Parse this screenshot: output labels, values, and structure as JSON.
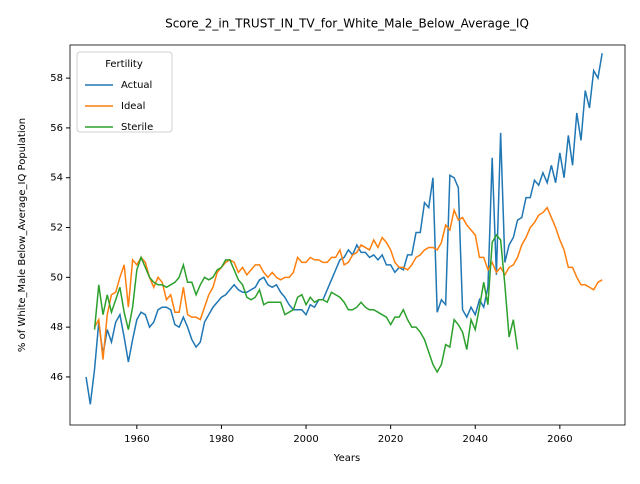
{
  "chart_data": {
    "type": "line",
    "title": "Score_2_in_TRUST_IN_TV_for_White_Male_Below_Average_IQ",
    "xlabel": "Years",
    "ylabel": "% of White_Male Below_Average_IQ Population",
    "legend_title": "Fertility",
    "legend": "upper left",
    "grid": false,
    "x": [
      1948,
      1949,
      1950,
      1951,
      1952,
      1953,
      1954,
      1955,
      1956,
      1957,
      1958,
      1959,
      1960,
      1961,
      1962,
      1963,
      1964,
      1965,
      1966,
      1967,
      1968,
      1969,
      1970,
      1971,
      1972,
      1973,
      1974,
      1975,
      1976,
      1977,
      1978,
      1979,
      1980,
      1981,
      1982,
      1983,
      1984,
      1985,
      1986,
      1987,
      1988,
      1989,
      1990,
      1991,
      1992,
      1993,
      1994,
      1995,
      1996,
      1997,
      1998,
      1999,
      2000,
      2001,
      2002,
      2003,
      2004,
      2005,
      2006,
      2007,
      2008,
      2009,
      2010,
      2011,
      2012,
      2013,
      2014,
      2015,
      2016,
      2017,
      2018,
      2019,
      2020,
      2021,
      2022,
      2023,
      2024,
      2025,
      2026,
      2027,
      2028,
      2029,
      2030,
      2031,
      2032,
      2033,
      2034,
      2035,
      2036,
      2037,
      2038,
      2039,
      2040,
      2041,
      2042,
      2043,
      2044,
      2045,
      2046,
      2047,
      2048,
      2049,
      2050,
      2051,
      2052,
      2053,
      2054,
      2055,
      2056,
      2057,
      2058,
      2059,
      2060,
      2061,
      2062,
      2063,
      2064,
      2065,
      2066,
      2067,
      2068,
      2069,
      2070
    ],
    "series": [
      {
        "name": "Actual",
        "color": "#1f77b4",
        "values": [
          46.0,
          44.9,
          46.3,
          48.2,
          46.9,
          47.9,
          47.4,
          48.2,
          48.5,
          47.6,
          46.6,
          47.5,
          48.3,
          48.6,
          48.5,
          48.0,
          48.2,
          48.7,
          48.8,
          48.8,
          48.7,
          48.1,
          48.0,
          48.4,
          48.0,
          47.5,
          47.2,
          47.4,
          48.2,
          48.5,
          48.8,
          49.0,
          49.2,
          49.3,
          49.5,
          49.7,
          49.5,
          49.4,
          49.4,
          49.5,
          49.6,
          49.9,
          50.0,
          49.7,
          49.6,
          49.7,
          49.4,
          49.2,
          48.9,
          48.7,
          48.7,
          48.7,
          48.5,
          48.9,
          48.8,
          49.1,
          49.1,
          49.5,
          49.9,
          50.3,
          50.7,
          50.8,
          51.1,
          50.9,
          51.3,
          51.0,
          51.0,
          50.8,
          50.9,
          50.7,
          50.9,
          50.5,
          50.5,
          50.2,
          50.4,
          50.3,
          50.9,
          50.9,
          51.8,
          51.8,
          53.0,
          52.8,
          54.0,
          48.6,
          49.1,
          48.9,
          54.1,
          54.0,
          53.6,
          48.7,
          48.4,
          48.8,
          48.5,
          49.1,
          48.8,
          49.6,
          54.8,
          50.1,
          55.8,
          50.6,
          51.3,
          51.6,
          52.3,
          52.4,
          53.2,
          53.2,
          53.9,
          53.7,
          54.2,
          53.8,
          54.5,
          53.8,
          55.0,
          54.0,
          55.7,
          54.5,
          56.6,
          55.5,
          57.5,
          56.8,
          58.3,
          58.0,
          59.0
        ]
      },
      {
        "name": "Ideal",
        "color": "#ff7f0e",
        "values": [
          null,
          null,
          48.0,
          48.3,
          46.7,
          48.5,
          49.3,
          49.4,
          50.0,
          50.5,
          48.8,
          50.7,
          50.5,
          50.8,
          50.6,
          50.0,
          49.6,
          50.0,
          49.8,
          49.1,
          49.3,
          48.6,
          48.6,
          49.6,
          48.5,
          48.4,
          48.4,
          48.3,
          48.8,
          49.3,
          49.6,
          50.2,
          50.4,
          50.6,
          50.7,
          50.6,
          50.2,
          50.4,
          50.1,
          50.3,
          50.5,
          50.5,
          50.2,
          50.0,
          50.2,
          50.0,
          49.9,
          50.0,
          50.0,
          50.2,
          50.8,
          50.6,
          50.6,
          50.8,
          50.7,
          50.7,
          50.6,
          50.6,
          50.8,
          50.8,
          51.1,
          50.5,
          50.6,
          50.9,
          51.0,
          51.3,
          51.2,
          51.1,
          51.5,
          51.2,
          51.6,
          51.4,
          51.1,
          50.6,
          50.4,
          50.4,
          50.3,
          50.5,
          50.8,
          50.9,
          51.1,
          51.2,
          51.2,
          51.1,
          51.4,
          52.1,
          51.9,
          52.7,
          52.3,
          52.4,
          52.1,
          51.9,
          51.7,
          50.8,
          50.8,
          50.3,
          50.6,
          50.2,
          50.4,
          50.1,
          50.4,
          50.5,
          50.8,
          51.3,
          51.6,
          52.0,
          52.2,
          52.5,
          52.6,
          52.8,
          52.4,
          52.0,
          51.5,
          51.1,
          50.4,
          50.4,
          50.0,
          49.7,
          49.7,
          49.6,
          49.5,
          49.8,
          49.9
        ]
      },
      {
        "name": "Sterile",
        "color": "#2ca02c",
        "values": [
          null,
          null,
          47.9,
          49.7,
          48.5,
          49.3,
          48.6,
          49.1,
          49.6,
          48.6,
          47.9,
          48.8,
          50.3,
          50.8,
          50.4,
          50.0,
          49.8,
          49.7,
          49.7,
          49.6,
          49.7,
          49.8,
          50.0,
          50.5,
          49.8,
          49.8,
          49.3,
          49.7,
          50.0,
          49.9,
          50.0,
          50.3,
          50.4,
          50.7,
          50.7,
          50.3,
          49.9,
          49.7,
          49.2,
          49.1,
          49.2,
          49.5,
          48.9,
          49.0,
          49.0,
          49.0,
          49.0,
          48.5,
          48.6,
          48.7,
          49.2,
          49.3,
          48.9,
          49.2,
          49.0,
          49.1,
          49.1,
          49.0,
          49.4,
          49.3,
          49.2,
          49.0,
          48.7,
          48.7,
          48.8,
          49.0,
          48.8,
          48.7,
          48.7,
          48.6,
          48.5,
          48.4,
          48.1,
          48.4,
          48.4,
          48.7,
          48.3,
          48.0,
          48.0,
          47.8,
          47.5,
          47.0,
          46.5,
          46.2,
          46.5,
          47.3,
          47.2,
          48.3,
          48.1,
          47.8,
          47.1,
          48.3,
          47.9,
          48.8,
          49.8,
          48.9,
          51.4,
          51.7,
          51.5,
          49.7,
          47.6,
          48.3,
          47.1,
          null,
          null,
          null,
          null,
          null,
          null,
          null,
          null,
          null,
          null,
          null,
          null,
          null,
          null,
          null,
          null,
          null,
          null,
          null,
          null
        ]
      }
    ],
    "xlim": [
      1944.2,
      2075.4
    ],
    "xticks": [
      1960,
      1980,
      2000,
      2020,
      2040,
      2060
    ],
    "ylim": [
      44.07,
      59.33
    ],
    "yticks": [
      46,
      48,
      50,
      52,
      54,
      56,
      58
    ]
  }
}
